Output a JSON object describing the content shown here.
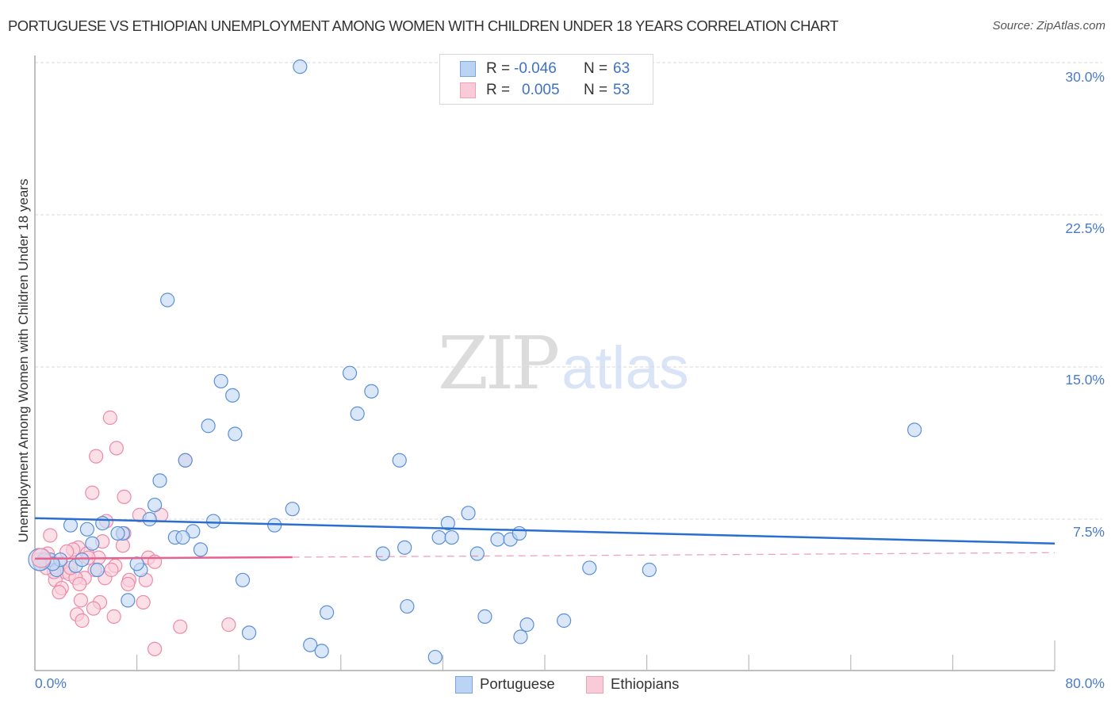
{
  "header": {
    "title": "PORTUGUESE VS ETHIOPIAN UNEMPLOYMENT AMONG WOMEN WITH CHILDREN UNDER 18 YEARS CORRELATION CHART",
    "source": "Source: ZipAtlas.com"
  },
  "watermark": {
    "zip": "ZIP",
    "atlas": "atlas"
  },
  "legend": {
    "rows": [
      {
        "r_label": "R =",
        "r_value": "-0.046",
        "n_label": "N =",
        "n_value": "63",
        "color": "#a9c8f0"
      },
      {
        "r_label": "R =",
        "r_value": "0.005",
        "n_label": "N =",
        "n_value": "53",
        "color": "#f7bfd0"
      }
    ]
  },
  "axes": {
    "y_label": "Unemployment Among Women with Children Under 18 years",
    "y_ticks": [
      "30.0%",
      "22.5%",
      "15.0%",
      "7.5%"
    ],
    "x_ticks": [
      "0.0%",
      "80.0%"
    ]
  },
  "bottom_legend": [
    {
      "label": "Portuguese",
      "color": "#a9c8f0"
    },
    {
      "label": "Ethiopians",
      "color": "#f7bfd0"
    }
  ],
  "colors": {
    "blue_fill": "#c5daf4",
    "blue_stroke": "#5b8fd8",
    "blue_line": "#2a6fd0",
    "pink_fill": "#f9d0dc",
    "pink_stroke": "#ec8aa8",
    "pink_line": "#e8628e",
    "tick_label": "#4a7cc9",
    "grid": "#d9d9d9"
  },
  "chart_data": {
    "type": "scatter",
    "title": "PORTUGUESE VS ETHIOPIAN UNEMPLOYMENT AMONG WOMEN WITH CHILDREN UNDER 18 YEARS CORRELATION CHART",
    "xlabel": "",
    "ylabel": "Unemployment Among Women with Children Under 18 years",
    "xlim": [
      0,
      80
    ],
    "ylim": [
      0,
      30.5
    ],
    "x_ticks": [
      0,
      80
    ],
    "y_ticks": [
      7.5,
      15.0,
      22.5,
      30.0
    ],
    "grid": true,
    "legend_position": "top-center and bottom",
    "series": [
      {
        "name": "Portuguese",
        "R": -0.046,
        "N": 63,
        "trend": {
          "x": [
            0,
            80
          ],
          "y": [
            7.55,
            6.3
          ]
        },
        "points": [
          [
            20.8,
            29.8
          ],
          [
            10.4,
            18.3
          ],
          [
            14.6,
            14.3
          ],
          [
            15.5,
            13.6
          ],
          [
            24.7,
            14.7
          ],
          [
            26.4,
            13.8
          ],
          [
            25.3,
            12.7
          ],
          [
            15.7,
            11.7
          ],
          [
            13.6,
            12.1
          ],
          [
            69.0,
            11.9
          ],
          [
            28.6,
            10.4
          ],
          [
            11.8,
            10.4
          ],
          [
            9.8,
            9.4
          ],
          [
            9.4,
            8.2
          ],
          [
            34.0,
            7.8
          ],
          [
            20.2,
            8.0
          ],
          [
            18.8,
            7.2
          ],
          [
            32.4,
            7.3
          ],
          [
            9.0,
            7.5
          ],
          [
            14.0,
            7.4
          ],
          [
            5.3,
            7.3
          ],
          [
            2.8,
            7.2
          ],
          [
            6.9,
            6.8
          ],
          [
            6.5,
            6.8
          ],
          [
            12.4,
            6.9
          ],
          [
            11.0,
            6.6
          ],
          [
            11.6,
            6.6
          ],
          [
            13.0,
            6.0
          ],
          [
            31.7,
            6.6
          ],
          [
            32.7,
            6.6
          ],
          [
            36.3,
            6.5
          ],
          [
            37.3,
            6.5
          ],
          [
            38.0,
            6.8
          ],
          [
            29.0,
            6.1
          ],
          [
            27.3,
            5.8
          ],
          [
            34.7,
            5.8
          ],
          [
            4.1,
            7.0
          ],
          [
            4.5,
            6.3
          ],
          [
            43.5,
            5.1
          ],
          [
            48.2,
            5.0
          ],
          [
            4.9,
            5.0
          ],
          [
            8.3,
            5.0
          ],
          [
            8.0,
            5.3
          ],
          [
            1.2,
            5.5
          ],
          [
            1.7,
            5.0
          ],
          [
            16.3,
            4.5
          ],
          [
            7.3,
            3.5
          ],
          [
            29.2,
            3.2
          ],
          [
            22.9,
            2.9
          ],
          [
            35.3,
            2.7
          ],
          [
            38.6,
            2.3
          ],
          [
            41.5,
            2.5
          ],
          [
            16.8,
            1.9
          ],
          [
            21.6,
            1.3
          ],
          [
            22.5,
            1.0
          ],
          [
            31.4,
            0.7
          ],
          [
            38.1,
            1.7
          ],
          [
            0.7,
            5.5
          ],
          [
            0.4,
            5.3
          ],
          [
            2.0,
            5.5
          ],
          [
            3.2,
            5.2
          ],
          [
            3.7,
            5.5
          ],
          [
            1.4,
            5.3
          ]
        ]
      },
      {
        "name": "Ethiopians",
        "R": 0.005,
        "N": 53,
        "trend": {
          "x": [
            0,
            80
          ],
          "y": [
            5.55,
            5.85
          ]
        },
        "points": [
          [
            5.9,
            12.5
          ],
          [
            6.4,
            11.0
          ],
          [
            4.8,
            10.6
          ],
          [
            11.8,
            10.4
          ],
          [
            4.5,
            8.8
          ],
          [
            7.0,
            8.6
          ],
          [
            9.9,
            7.7
          ],
          [
            8.2,
            7.7
          ],
          [
            5.6,
            7.4
          ],
          [
            1.2,
            6.7
          ],
          [
            7.0,
            6.8
          ],
          [
            5.3,
            6.4
          ],
          [
            3.4,
            6.1
          ],
          [
            3.0,
            6.0
          ],
          [
            4.1,
            5.8
          ],
          [
            6.9,
            6.2
          ],
          [
            2.5,
            5.9
          ],
          [
            5.0,
            5.6
          ],
          [
            8.9,
            5.6
          ],
          [
            4.7,
            5.0
          ],
          [
            6.3,
            5.2
          ],
          [
            2.0,
            5.3
          ],
          [
            0.6,
            5.4
          ],
          [
            1.0,
            5.8
          ],
          [
            9.4,
            5.4
          ],
          [
            2.3,
            4.9
          ],
          [
            2.7,
            4.8
          ],
          [
            3.9,
            4.6
          ],
          [
            5.5,
            4.6
          ],
          [
            7.4,
            4.5
          ],
          [
            8.7,
            4.5
          ],
          [
            3.2,
            4.6
          ],
          [
            1.6,
            4.5
          ],
          [
            3.5,
            4.3
          ],
          [
            2.1,
            4.1
          ],
          [
            7.3,
            4.3
          ],
          [
            3.6,
            3.5
          ],
          [
            5.1,
            3.4
          ],
          [
            8.5,
            3.4
          ],
          [
            1.9,
            3.9
          ],
          [
            4.6,
            3.1
          ],
          [
            3.3,
            2.8
          ],
          [
            6.2,
            2.7
          ],
          [
            3.7,
            2.5
          ],
          [
            11.4,
            2.2
          ],
          [
            15.2,
            2.3
          ],
          [
            9.4,
            1.1
          ],
          [
            0.3,
            5.5
          ],
          [
            1.5,
            4.9
          ],
          [
            2.8,
            5.1
          ],
          [
            4.2,
            5.6
          ],
          [
            6.0,
            5.0
          ],
          [
            0.9,
            5.1
          ]
        ]
      }
    ]
  }
}
